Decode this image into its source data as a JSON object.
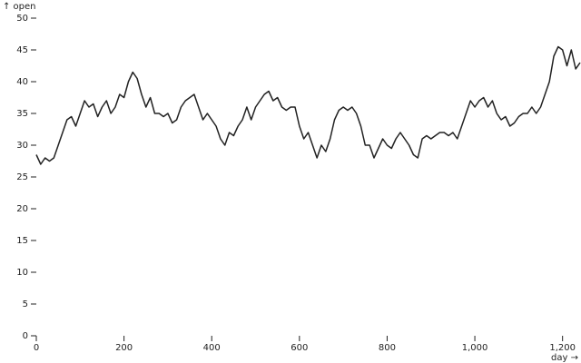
{
  "chart_data": {
    "type": "line",
    "x_label": "day →",
    "y_label": "↑ open",
    "color": "#222222",
    "x": [
      0,
      10,
      20,
      30,
      40,
      50,
      60,
      70,
      80,
      90,
      100,
      110,
      120,
      130,
      140,
      150,
      160,
      170,
      180,
      190,
      200,
      210,
      220,
      230,
      240,
      250,
      260,
      270,
      280,
      290,
      300,
      310,
      320,
      330,
      340,
      350,
      360,
      370,
      380,
      390,
      400,
      410,
      420,
      430,
      440,
      450,
      460,
      470,
      480,
      490,
      500,
      510,
      520,
      530,
      540,
      550,
      560,
      570,
      580,
      590,
      600,
      610,
      620,
      630,
      640,
      650,
      660,
      670,
      680,
      690,
      700,
      710,
      720,
      730,
      740,
      750,
      760,
      770,
      780,
      790,
      800,
      810,
      820,
      830,
      840,
      850,
      860,
      870,
      880,
      890,
      900,
      910,
      920,
      930,
      940,
      950,
      960,
      970,
      980,
      990,
      1000,
      1010,
      1020,
      1030,
      1040,
      1050,
      1060,
      1070,
      1080,
      1090,
      1100,
      1110,
      1120,
      1130,
      1140,
      1150,
      1160,
      1170,
      1180,
      1190,
      1200,
      1210,
      1220,
      1230,
      1240
    ],
    "values": [
      28.5,
      27,
      28,
      27.5,
      28,
      30,
      32,
      34,
      34.5,
      33,
      35,
      37,
      36,
      36.5,
      34.5,
      36,
      37,
      35,
      36,
      38,
      37.5,
      40,
      41.5,
      40.5,
      38,
      36,
      37.5,
      35,
      35,
      34.5,
      35,
      33.5,
      34,
      36,
      37,
      37.5,
      38,
      36,
      34,
      35,
      34,
      33,
      31,
      30,
      32,
      31.5,
      33,
      34,
      36,
      34,
      36,
      37,
      38,
      38.5,
      37,
      37.5,
      36,
      35.5,
      36,
      36,
      33,
      31,
      32,
      30,
      28,
      30,
      29,
      31,
      34,
      35.5,
      36,
      35.5,
      36,
      35,
      33,
      30,
      30,
      28,
      29.5,
      31,
      30,
      29.5,
      31,
      32,
      31,
      30,
      28.5,
      28,
      31,
      31.5,
      31,
      31.5,
      32,
      32,
      31.5,
      32,
      31,
      33,
      35,
      37,
      36,
      37,
      37.5,
      36,
      37,
      35,
      34,
      34.5,
      33,
      33.5,
      34.5,
      35,
      35,
      36,
      35,
      36,
      38,
      40,
      44,
      45.5,
      45,
      42.5,
      45,
      42,
      43
    ],
    "xlim": [
      0,
      1240
    ],
    "ylim": [
      0,
      50
    ],
    "xticks": [
      0,
      200,
      400,
      600,
      800,
      {
        "value": 1000,
        "label": "1,000"
      },
      {
        "value": 1200,
        "label": "1,200"
      }
    ],
    "yticks": [
      0,
      5,
      10,
      15,
      20,
      25,
      30,
      35,
      40,
      45,
      50
    ]
  }
}
